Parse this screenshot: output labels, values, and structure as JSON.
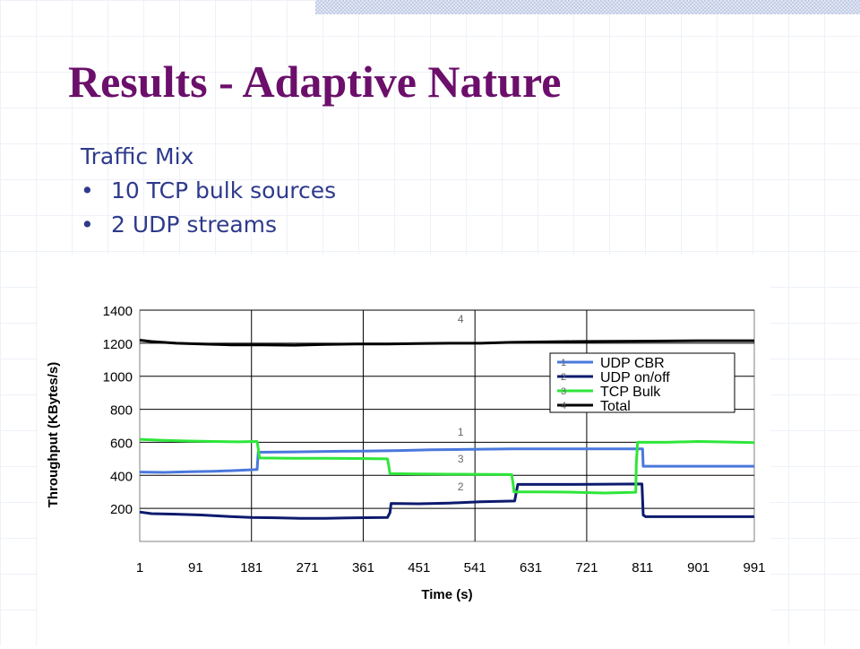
{
  "slide": {
    "title": "Results - Adaptive Nature",
    "heading": "Traffic Mix",
    "bullets": [
      "10 TCP bulk sources",
      "2 UDP streams"
    ],
    "bullet_glyph": "•"
  },
  "colors": {
    "title": "#6b0f6b",
    "body_text": "#2e3a8c",
    "udp_cbr": "#4a78dc",
    "udp_onoff": "#0d1b6e",
    "tcp_bulk": "#2ee63a",
    "total": "#000000",
    "marker_labels": "#666666"
  },
  "chart_data": {
    "type": "line",
    "title": "",
    "xlabel": "Time (s)",
    "ylabel": "Throughput (KBytes/s)",
    "xlim": [
      1,
      991
    ],
    "ylim": [
      0,
      1400
    ],
    "x_ticks": [
      "1",
      "91",
      "181",
      "271",
      "361",
      "451",
      "541",
      "631",
      "721",
      "811",
      "901",
      "991"
    ],
    "y_ticks": [
      "1400",
      "1200",
      "1000",
      "800",
      "600",
      "400",
      "200"
    ],
    "grid": true,
    "legend_position": "right",
    "series": [
      {
        "name": "UDP CBR",
        "marker": "1",
        "color": "#4a78dc",
        "points": [
          [
            1,
            420
          ],
          [
            40,
            418
          ],
          [
            80,
            422
          ],
          [
            120,
            425
          ],
          [
            160,
            430
          ],
          [
            190,
            435
          ],
          [
            192,
            540
          ],
          [
            250,
            542
          ],
          [
            300,
            545
          ],
          [
            360,
            547
          ],
          [
            420,
            550
          ],
          [
            470,
            555
          ],
          [
            520,
            557
          ],
          [
            600,
            560
          ],
          [
            700,
            560
          ],
          [
            800,
            560
          ],
          [
            811,
            560
          ],
          [
            812,
            455
          ],
          [
            900,
            455
          ],
          [
            991,
            455
          ]
        ]
      },
      {
        "name": "UDP on/off",
        "marker": "2",
        "color": "#0d1b6e",
        "points": [
          [
            1,
            178
          ],
          [
            20,
            168
          ],
          [
            60,
            165
          ],
          [
            100,
            160
          ],
          [
            140,
            152
          ],
          [
            180,
            145
          ],
          [
            220,
            143
          ],
          [
            260,
            140
          ],
          [
            300,
            140
          ],
          [
            350,
            143
          ],
          [
            400,
            145
          ],
          [
            404,
            175
          ],
          [
            406,
            230
          ],
          [
            450,
            228
          ],
          [
            500,
            232
          ],
          [
            550,
            240
          ],
          [
            605,
            245
          ],
          [
            606,
            265
          ],
          [
            610,
            345
          ],
          [
            700,
            345
          ],
          [
            810,
            348
          ],
          [
            812,
            160
          ],
          [
            816,
            150
          ],
          [
            900,
            150
          ],
          [
            991,
            150
          ]
        ]
      },
      {
        "name": "TCP Bulk",
        "marker": "3",
        "color": "#2ee63a",
        "points": [
          [
            1,
            618
          ],
          [
            40,
            612
          ],
          [
            80,
            608
          ],
          [
            120,
            605
          ],
          [
            160,
            603
          ],
          [
            190,
            605
          ],
          [
            192,
            560
          ],
          [
            194,
            505
          ],
          [
            250,
            503
          ],
          [
            300,
            503
          ],
          [
            350,
            502
          ],
          [
            400,
            500
          ],
          [
            402,
            460
          ],
          [
            404,
            410
          ],
          [
            450,
            408
          ],
          [
            500,
            407
          ],
          [
            600,
            405
          ],
          [
            602,
            360
          ],
          [
            604,
            300
          ],
          [
            650,
            300
          ],
          [
            700,
            298
          ],
          [
            750,
            293
          ],
          [
            795,
            297
          ],
          [
            800,
            298
          ],
          [
            801,
            470
          ],
          [
            803,
            600
          ],
          [
            850,
            600
          ],
          [
            900,
            605
          ],
          [
            950,
            602
          ],
          [
            991,
            598
          ]
        ]
      },
      {
        "name": "Total",
        "marker": "4",
        "color": "#000000",
        "points": [
          [
            1,
            1218
          ],
          [
            20,
            1210
          ],
          [
            60,
            1200
          ],
          [
            100,
            1195
          ],
          [
            150,
            1190
          ],
          [
            200,
            1190
          ],
          [
            250,
            1188
          ],
          [
            300,
            1192
          ],
          [
            350,
            1195
          ],
          [
            400,
            1195
          ],
          [
            450,
            1198
          ],
          [
            500,
            1200
          ],
          [
            550,
            1200
          ],
          [
            600,
            1205
          ],
          [
            700,
            1210
          ],
          [
            800,
            1212
          ],
          [
            900,
            1215
          ],
          [
            991,
            1215
          ]
        ]
      }
    ],
    "annotations": [
      {
        "text": "4",
        "x": 518,
        "y": 1325
      },
      {
        "text": "1",
        "x": 518,
        "y": 640
      },
      {
        "text": "3",
        "x": 518,
        "y": 478
      },
      {
        "text": "2",
        "x": 518,
        "y": 310
      }
    ]
  }
}
